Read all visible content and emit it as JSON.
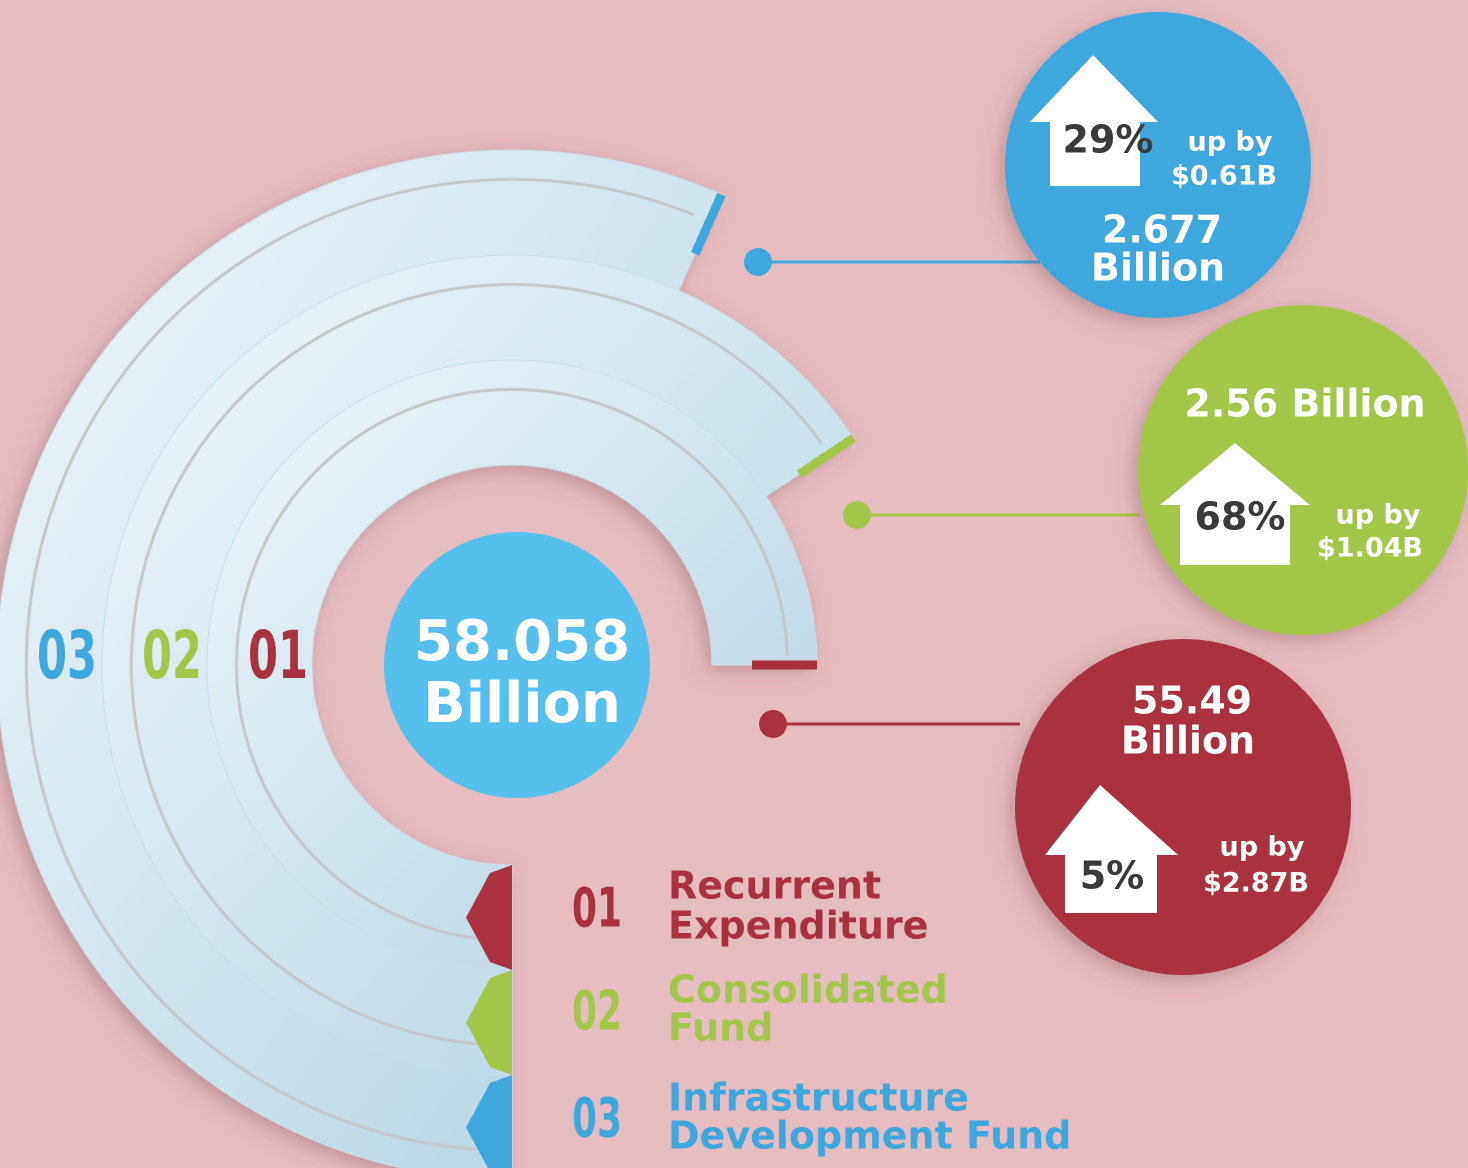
{
  "center": {
    "value": "58.058",
    "unit": "Billion",
    "color": "#55bfee"
  },
  "items": [
    {
      "number": "01",
      "name_lines": [
        "Recurrent",
        "Expenditure"
      ],
      "amount_lines": [
        "55.49",
        "Billion"
      ],
      "percent": "5%",
      "change_label": "up by",
      "change": "$2.87B",
      "color": "#aa3240"
    },
    {
      "number": "02",
      "name_lines": [
        "Consolidated",
        "Fund"
      ],
      "amount_lines": [
        "2.56 Billion"
      ],
      "percent": "68%",
      "change_label": "up by",
      "change": "$1.04B",
      "color": "#a3c64a"
    },
    {
      "number": "03",
      "name_lines": [
        "Infrastructure",
        "Development Fund"
      ],
      "amount_lines": [
        "2.677",
        "Billion"
      ],
      "percent": "29%",
      "change_label": "up by",
      "change": "$0.61B",
      "color": "#3ea7de"
    }
  ]
}
